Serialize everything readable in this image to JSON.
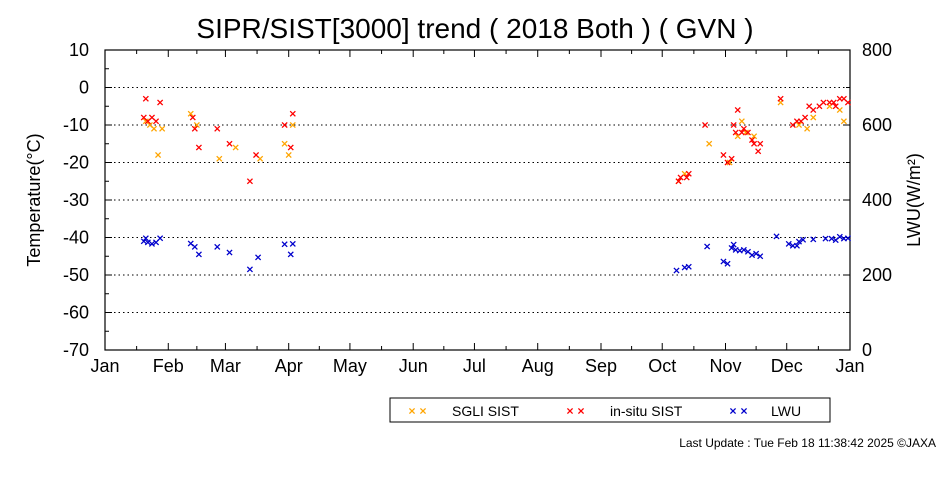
{
  "chart_data": {
    "type": "scatter",
    "title": "SIPR/SIST[3000] trend ( 2018 Both ) ( GVN )",
    "ylabel": "Temperature(°C)",
    "y2label": "LWU(W/m²)",
    "ylim": [
      -70,
      10
    ],
    "y2lim": [
      0,
      800
    ],
    "yticks": [
      "10",
      "0",
      "-10",
      "-20",
      "-30",
      "-40",
      "-50",
      "-60",
      "-70"
    ],
    "y2ticks": [
      "800",
      "600",
      "400",
      "200",
      "0"
    ],
    "xlim": [
      0,
      365
    ],
    "xticks": [
      {
        "label": "Jan",
        "day": 0
      },
      {
        "label": "Feb",
        "day": 31
      },
      {
        "label": "Mar",
        "day": 59
      },
      {
        "label": "Apr",
        "day": 90
      },
      {
        "label": "May",
        "day": 120
      },
      {
        "label": "Jun",
        "day": 151
      },
      {
        "label": "Jul",
        "day": 181
      },
      {
        "label": "Aug",
        "day": 212
      },
      {
        "label": "Sep",
        "day": 243
      },
      {
        "label": "Oct",
        "day": 273
      },
      {
        "label": "Nov",
        "day": 304
      },
      {
        "label": "Dec",
        "day": 334
      },
      {
        "label": "Jan",
        "day": 365
      }
    ],
    "grid": "horizontal dotted",
    "legend_position": "bottom",
    "series": [
      {
        "name": "SGLI SIST",
        "color": "#ffa500",
        "axis": "left",
        "points": [
          [
            20,
            -9
          ],
          [
            22,
            -10
          ],
          [
            24,
            -11
          ],
          [
            26,
            -18
          ],
          [
            28,
            -11
          ],
          [
            42,
            -7
          ],
          [
            45,
            -10
          ],
          [
            56,
            -19
          ],
          [
            64,
            -16
          ],
          [
            76,
            -19
          ],
          [
            88,
            -15
          ],
          [
            90,
            -18
          ],
          [
            92,
            -10
          ],
          [
            281,
            -25
          ],
          [
            284,
            -23
          ],
          [
            296,
            -15
          ],
          [
            306,
            -20
          ],
          [
            310,
            -13
          ],
          [
            312,
            -9
          ],
          [
            314,
            -12
          ],
          [
            318,
            -13
          ],
          [
            331,
            -4
          ],
          [
            340,
            -10
          ],
          [
            344,
            -11
          ],
          [
            347,
            -8
          ],
          [
            355,
            -5
          ],
          [
            360,
            -6
          ],
          [
            362,
            -9
          ]
        ]
      },
      {
        "name": "in-situ SIST",
        "color": "#ff0000",
        "axis": "left",
        "points": [
          [
            19,
            -8
          ],
          [
            20,
            -3
          ],
          [
            21,
            -9
          ],
          [
            23,
            -8
          ],
          [
            25,
            -9
          ],
          [
            27,
            -4
          ],
          [
            43,
            -8
          ],
          [
            44,
            -11
          ],
          [
            46,
            -16
          ],
          [
            55,
            -11
          ],
          [
            61,
            -15
          ],
          [
            71,
            -25
          ],
          [
            74,
            -18
          ],
          [
            88,
            -10
          ],
          [
            91,
            -16
          ],
          [
            92,
            -7
          ],
          [
            281,
            -25
          ],
          [
            282,
            -24
          ],
          [
            285,
            -24
          ],
          [
            286,
            -23
          ],
          [
            294,
            -10
          ],
          [
            303,
            -18
          ],
          [
            305,
            -20
          ],
          [
            307,
            -19
          ],
          [
            308,
            -10
          ],
          [
            309,
            -12
          ],
          [
            310,
            -6
          ],
          [
            312,
            -12
          ],
          [
            313,
            -11
          ],
          [
            315,
            -12
          ],
          [
            317,
            -14
          ],
          [
            318,
            -15
          ],
          [
            320,
            -17
          ],
          [
            321,
            -15
          ],
          [
            331,
            -3
          ],
          [
            337,
            -10
          ],
          [
            339,
            -9
          ],
          [
            341,
            -9
          ],
          [
            343,
            -8
          ],
          [
            345,
            -5
          ],
          [
            347,
            -6
          ],
          [
            350,
            -5
          ],
          [
            352,
            -4
          ],
          [
            355,
            -4
          ],
          [
            357,
            -4
          ],
          [
            358,
            -5
          ],
          [
            360,
            -3
          ],
          [
            362,
            -3
          ],
          [
            364,
            -4
          ]
        ]
      },
      {
        "name": "LWU",
        "color": "#0000cc",
        "axis": "right",
        "points": [
          [
            19,
            290
          ],
          [
            20,
            298
          ],
          [
            21,
            287
          ],
          [
            23,
            283
          ],
          [
            25,
            287
          ],
          [
            27,
            298
          ],
          [
            42,
            284
          ],
          [
            44,
            275
          ],
          [
            46,
            255
          ],
          [
            55,
            275
          ],
          [
            61,
            260
          ],
          [
            71,
            215
          ],
          [
            75,
            247
          ],
          [
            88,
            282
          ],
          [
            91,
            255
          ],
          [
            92,
            283
          ],
          [
            280,
            212
          ],
          [
            284,
            220
          ],
          [
            286,
            222
          ],
          [
            295,
            276
          ],
          [
            303,
            236
          ],
          [
            305,
            230
          ],
          [
            307,
            272
          ],
          [
            308,
            281
          ],
          [
            309,
            267
          ],
          [
            311,
            265
          ],
          [
            313,
            267
          ],
          [
            315,
            262
          ],
          [
            317,
            253
          ],
          [
            319,
            257
          ],
          [
            321,
            250
          ],
          [
            329,
            303
          ],
          [
            335,
            283
          ],
          [
            337,
            278
          ],
          [
            339,
            278
          ],
          [
            340,
            289
          ],
          [
            342,
            294
          ],
          [
            347,
            295
          ],
          [
            353,
            297
          ],
          [
            356,
            297
          ],
          [
            358,
            293
          ],
          [
            360,
            302
          ],
          [
            362,
            297
          ],
          [
            364,
            298
          ]
        ]
      }
    ]
  },
  "footer": {
    "last_update": "Last Update : Tue Feb 18 11:38:42 2025 ©JAXA"
  }
}
